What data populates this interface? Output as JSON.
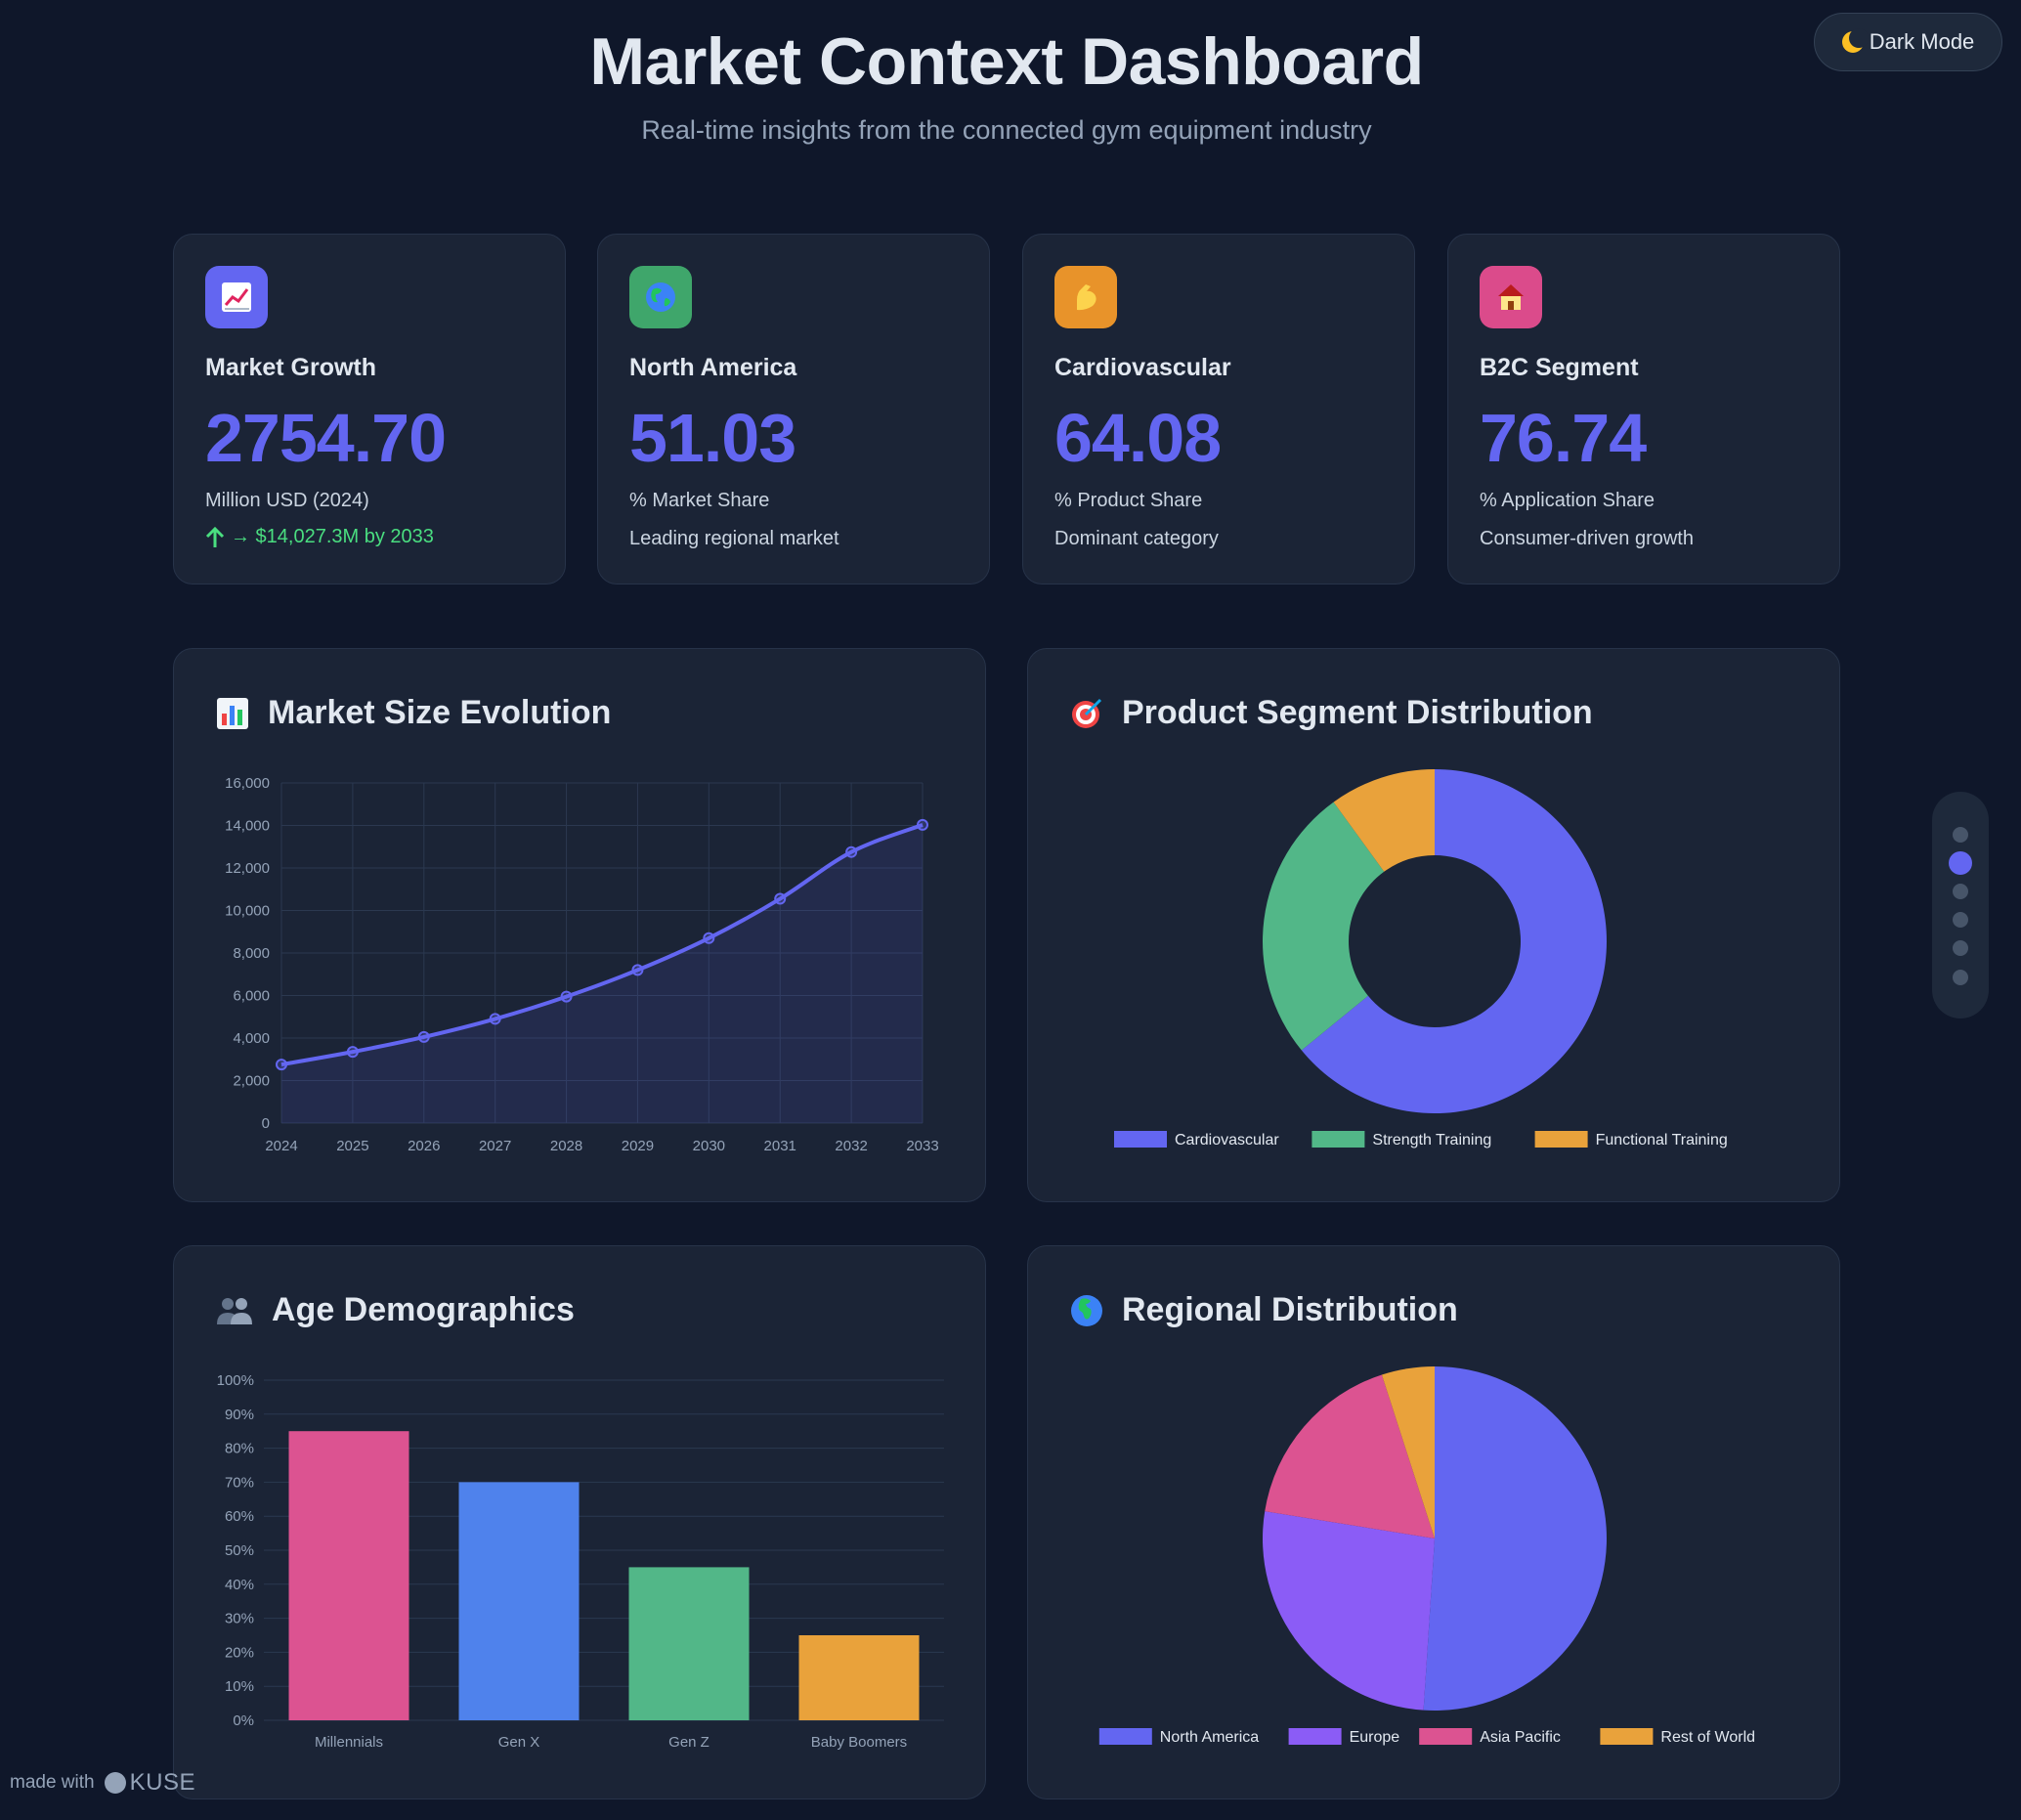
{
  "header": {
    "title": "Market Context Dashboard",
    "subtitle": "Real-time insights from the connected gym equipment industry",
    "theme_toggle_label": "Dark Mode"
  },
  "stats": [
    {
      "icon": "chart-increasing-icon",
      "icon_color": "#6366f1",
      "title": "Market Growth",
      "value": "2754.70",
      "unit": "Million USD (2024)",
      "trend": "→ $14,027.3M by 2033"
    },
    {
      "icon": "globe-americas-icon",
      "icon_color": "#3fa66b",
      "title": "North America",
      "value": "51.03",
      "unit": "% Market Share",
      "note": "Leading regional market"
    },
    {
      "icon": "flexed-biceps-icon",
      "icon_color": "#e8932a",
      "title": "Cardiovascular",
      "value": "64.08",
      "unit": "% Product Share",
      "note": "Dominant category"
    },
    {
      "icon": "house-icon",
      "icon_color": "#db4b8b",
      "title": "B2C Segment",
      "value": "76.74",
      "unit": "% Application Share",
      "note": "Consumer-driven growth"
    }
  ],
  "charts": {
    "market_size": {
      "title": "Market Size Evolution",
      "icon": "bar-chart-icon"
    },
    "product_segment": {
      "title": "Product Segment Distribution",
      "icon": "dart-target-icon"
    },
    "age_demographics": {
      "title": "Age Demographics",
      "icon": "two-people-icon"
    },
    "regional": {
      "title": "Regional Distribution",
      "icon": "globe-europe-africa-icon"
    }
  },
  "chart_data": [
    {
      "type": "area",
      "title": "Market Size Evolution",
      "x": [
        "2024",
        "2025",
        "2026",
        "2027",
        "2028",
        "2029",
        "2030",
        "2031",
        "2032",
        "2033"
      ],
      "series": [
        {
          "values": [
            2754.7,
            3350,
            4050,
            4900,
            5950,
            7200,
            8700,
            10550,
            12750,
            14027.3
          ],
          "color": "#6366f1"
        }
      ],
      "ylim": [
        0,
        16000
      ],
      "yticks": [
        "0",
        "2,000",
        "4,000",
        "6,000",
        "8,000",
        "10,000",
        "12,000",
        "14,000",
        "16,000"
      ],
      "grid": true
    },
    {
      "type": "pie",
      "donut": true,
      "title": "Product Segment Distribution",
      "categories": [
        "Cardiovascular",
        "Strength Training",
        "Functional Training"
      ],
      "values": [
        64.08,
        25.92,
        10.0
      ],
      "colors": [
        "#6366f1",
        "#52b788",
        "#e9a23b"
      ],
      "legend": "bottom"
    },
    {
      "type": "bar",
      "title": "Age Demographics",
      "categories": [
        "Millennials",
        "Gen X",
        "Gen Z",
        "Baby Boomers"
      ],
      "values": [
        85,
        70,
        45,
        25
      ],
      "colors": [
        "#dc5391",
        "#4f82ec",
        "#52b788",
        "#e9a23b"
      ],
      "ylim": [
        0,
        100
      ],
      "yticks": [
        "0%",
        "10%",
        "20%",
        "30%",
        "40%",
        "50%",
        "60%",
        "70%",
        "80%",
        "90%",
        "100%"
      ],
      "grid": true
    },
    {
      "type": "pie",
      "title": "Regional Distribution",
      "categories": [
        "North America",
        "Europe",
        "Asia Pacific",
        "Rest of World"
      ],
      "values": [
        51.03,
        26.5,
        17.5,
        4.97
      ],
      "colors": [
        "#6366f1",
        "#8b5cf6",
        "#dc5391",
        "#e9a23b"
      ],
      "legend": "bottom"
    }
  ],
  "pager": {
    "count": 6,
    "active_index": 1
  },
  "footer": {
    "made_with": "made with",
    "brand": "KUSE"
  }
}
